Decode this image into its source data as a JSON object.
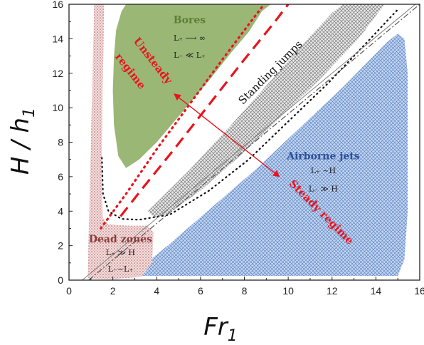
{
  "chart_data": {
    "type": "area",
    "x_label_main": "Fr",
    "x_label_sub": "1",
    "y_label_main": "H / h",
    "y_label_sub": "1",
    "xlim": [
      0,
      16
    ],
    "ylim": [
      0,
      16
    ],
    "x_ticks": [
      "0",
      "2",
      "4",
      "6",
      "8",
      "10",
      "12",
      "14",
      "16"
    ],
    "y_ticks": [
      "0",
      "2",
      "4",
      "6",
      "8",
      "10",
      "12",
      "14",
      "16"
    ],
    "grid": false,
    "regions": [
      {
        "name": "Bores",
        "lines": [
          "L₊ ⟶ ∞",
          "L₋ ≪ L₊"
        ],
        "color": "#8aaa5e",
        "hatch": "none",
        "polygon": [
          [
            2.6,
            16
          ],
          [
            9.2,
            16
          ],
          [
            8.8,
            15.6
          ],
          [
            8.2,
            14.4
          ],
          [
            7.4,
            13.2
          ],
          [
            6.4,
            11.6
          ],
          [
            5.2,
            9.8
          ],
          [
            4.0,
            8.0
          ],
          [
            3.2,
            7.0
          ],
          [
            2.6,
            6.5
          ],
          [
            2.25,
            7.2
          ],
          [
            2.05,
            9.0
          ],
          [
            2.0,
            11.0
          ],
          [
            2.05,
            13.0
          ],
          [
            2.15,
            14.5
          ],
          [
            2.4,
            15.6
          ]
        ]
      },
      {
        "name": "Standing jumps",
        "lines": [],
        "color": "#8f8f8f",
        "hatch": "crosshatch",
        "polygon": [
          [
            3.6,
            4.0
          ],
          [
            5.5,
            6.4
          ],
          [
            7.4,
            9.0
          ],
          [
            9.3,
            11.7
          ],
          [
            10.9,
            14.0
          ],
          [
            12.0,
            15.5
          ],
          [
            12.5,
            16
          ],
          [
            14.4,
            16
          ],
          [
            13.2,
            14.0
          ],
          [
            11.4,
            11.6
          ],
          [
            9.6,
            9.4
          ],
          [
            7.8,
            7.2
          ],
          [
            6.0,
            5.2
          ],
          [
            4.6,
            3.9
          ],
          [
            3.9,
            3.6
          ]
        ]
      },
      {
        "name": "Airborne jets",
        "lines": [
          "L₊ ~H",
          "L₋ ≫ H"
        ],
        "color": "#6c93cf",
        "hatch": "crosshatch",
        "polygon": [
          [
            3.0,
            0.45
          ],
          [
            4.5,
            2.0
          ],
          [
            6.5,
            4.2
          ],
          [
            8.5,
            6.4
          ],
          [
            10.5,
            8.8
          ],
          [
            12.5,
            11.2
          ],
          [
            14.5,
            13.8
          ],
          [
            15.0,
            14.3
          ],
          [
            15.3,
            14.0
          ],
          [
            15.45,
            12.0
          ],
          [
            15.45,
            4.0
          ],
          [
            15.3,
            1.2
          ],
          [
            15.0,
            0.25
          ],
          [
            3.4,
            0.25
          ],
          [
            3.1,
            0.3
          ]
        ]
      },
      {
        "name": "Dead zones",
        "lines": [
          "L₊ ≫ H",
          "L₋~L₊"
        ],
        "color": "#b86a6a",
        "hatch": "dots",
        "polygon": [
          [
            0.85,
            0.1
          ],
          [
            1.15,
            16
          ],
          [
            1.6,
            16
          ],
          [
            1.55,
            12.0
          ],
          [
            1.5,
            8.0
          ],
          [
            1.5,
            5.0
          ],
          [
            1.55,
            3.6
          ],
          [
            1.8,
            3.25
          ],
          [
            2.6,
            3.15
          ],
          [
            3.6,
            3.15
          ],
          [
            3.85,
            2.8
          ],
          [
            3.8,
            1.0
          ],
          [
            3.3,
            0.2
          ],
          [
            2.0,
            0.05
          ]
        ]
      }
    ],
    "annotations": [
      {
        "text": "Unsteady regime",
        "color": "#e8141e"
      },
      {
        "text": "Steady regime",
        "color": "#e8141e"
      },
      {
        "text": "Standing jumps",
        "color": "#111111"
      }
    ],
    "boundary_lines": [
      {
        "name": "unsteady-dotted-boundary",
        "style": "dotted",
        "color": "#e8141e",
        "points": [
          [
            1.45,
            3.0
          ],
          [
            2.6,
            5.0
          ],
          [
            4.0,
            7.6
          ],
          [
            5.5,
            10.2
          ],
          [
            7.0,
            12.8
          ],
          [
            8.3,
            15.0
          ],
          [
            8.9,
            16
          ]
        ]
      },
      {
        "name": "steady-dashed-boundary",
        "style": "dashed",
        "color": "#e8141e",
        "points": [
          [
            2.35,
            3.7
          ],
          [
            3.4,
            5.4
          ],
          [
            4.8,
            7.6
          ],
          [
            6.4,
            10.2
          ],
          [
            8.0,
            12.8
          ],
          [
            9.4,
            15.0
          ],
          [
            10.0,
            16
          ]
        ]
      },
      {
        "name": "lower-dotted-boundary",
        "style": "dotted",
        "color": "#111111",
        "points": [
          [
            1.5,
            7.1
          ],
          [
            1.55,
            5.0
          ],
          [
            1.8,
            4.0
          ],
          [
            2.4,
            3.55
          ],
          [
            3.2,
            3.5
          ],
          [
            4.6,
            3.8
          ],
          [
            6.4,
            5.2
          ],
          [
            8.2,
            7.0
          ],
          [
            10.0,
            9.2
          ],
          [
            11.8,
            11.4
          ],
          [
            13.6,
            13.8
          ],
          [
            15.0,
            15.7
          ]
        ]
      },
      {
        "name": "diagonal-dash-dot-line",
        "style": "dashdot",
        "color": "#555555",
        "points": [
          [
            0.9,
            0.0
          ],
          [
            16.0,
            16.0
          ]
        ]
      },
      {
        "name": "diagonal-solid-line",
        "style": "solid",
        "color": "#777777",
        "points": [
          [
            0.6,
            0.0
          ],
          [
            15.8,
            16.0
          ]
        ]
      }
    ],
    "arrows": [
      {
        "name": "arrow-unsteady",
        "color": "#e8141e",
        "from": [
          6.3,
          9.3
        ],
        "to": [
          4.8,
          10.8
        ]
      },
      {
        "name": "arrow-steady",
        "color": "#e8141e",
        "from": [
          6.3,
          9.3
        ],
        "to": [
          9.6,
          6.0
        ]
      }
    ]
  }
}
